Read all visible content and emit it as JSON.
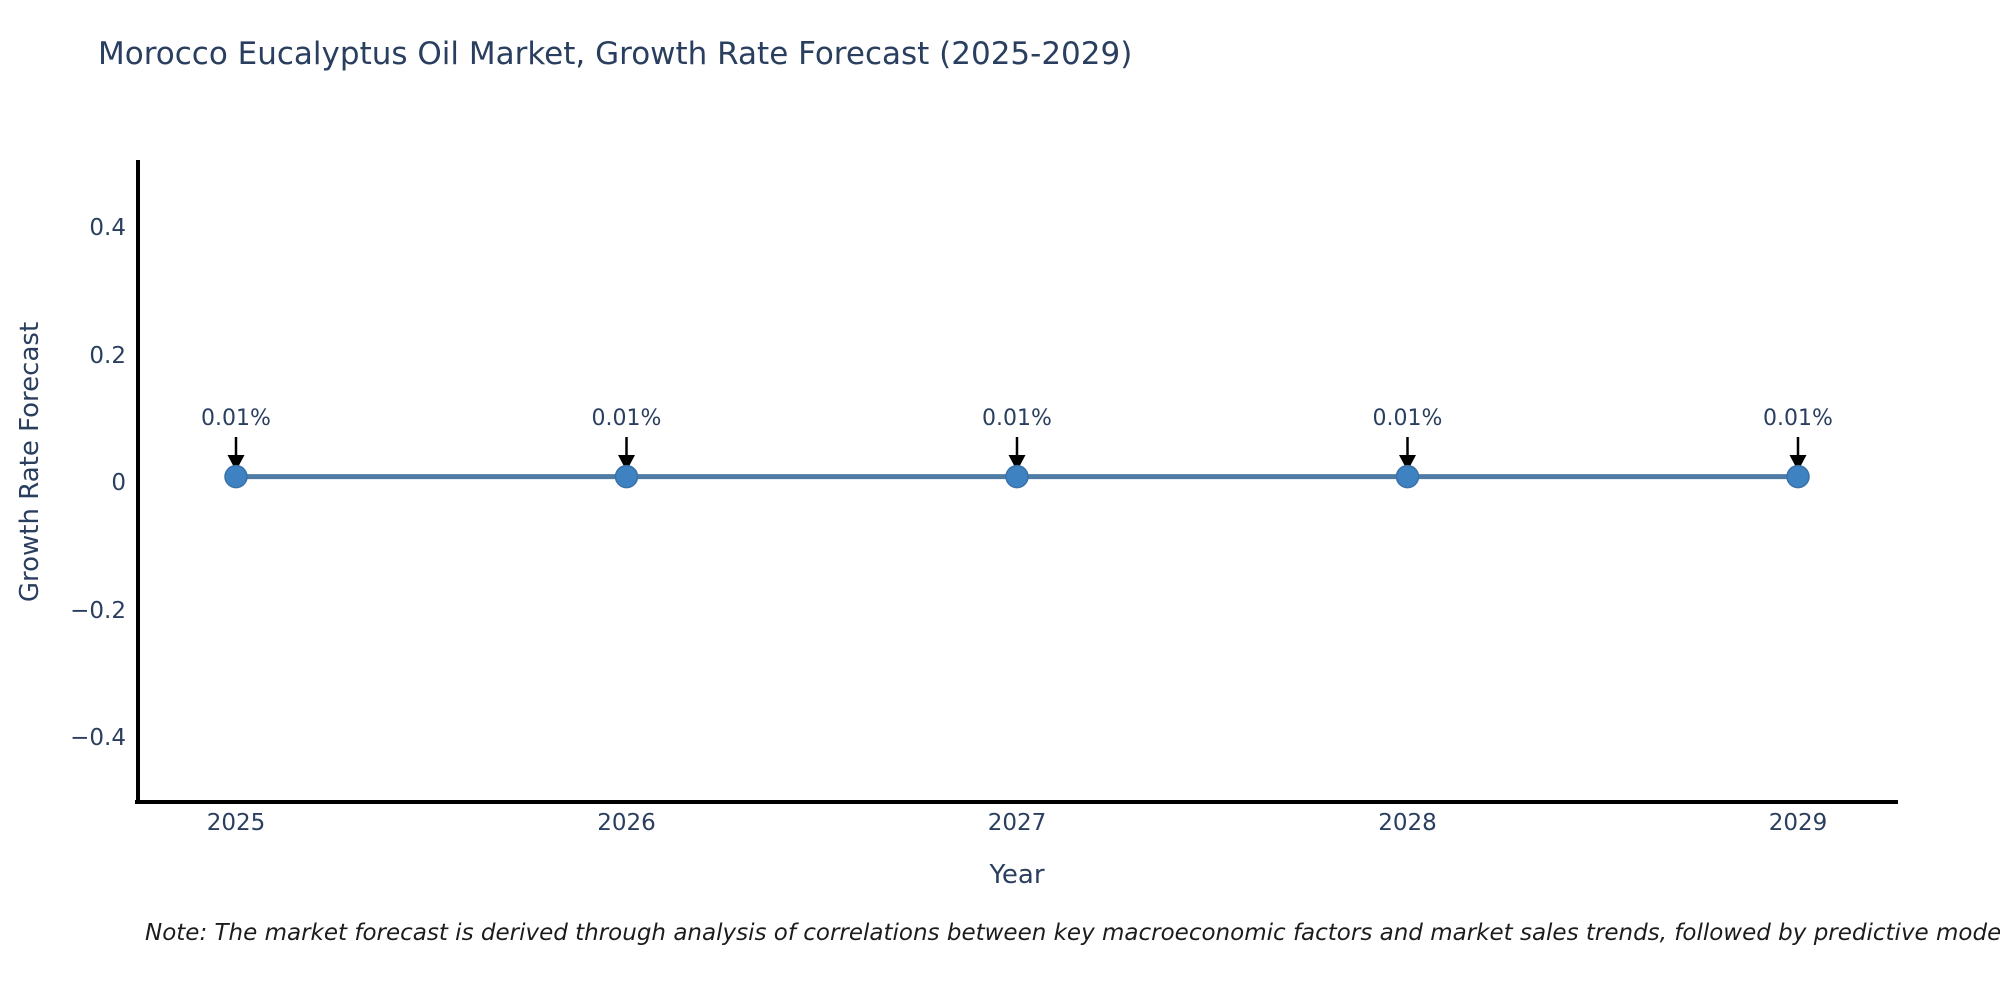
{
  "title": "Morocco Eucalyptus Oil Market, Growth Rate Forecast (2025-2029)",
  "note": "Note: The market forecast is derived through analysis of correlations between key macroeconomic factors and market sales trends, followed by predictive modeling to project future sales.",
  "chart_data": {
    "type": "line",
    "title": "Morocco Eucalyptus Oil Market, Growth Rate Forecast (2025-2029)",
    "xlabel": "Year",
    "ylabel": "Growth Rate Forecast",
    "categories": [
      "2025",
      "2026",
      "2027",
      "2028",
      "2029"
    ],
    "series": [
      {
        "name": "Growth Rate Forecast",
        "values": [
          0.01,
          0.01,
          0.01,
          0.01,
          0.01
        ],
        "point_labels": [
          "0.01%",
          "0.01%",
          "0.01%",
          "0.01%",
          "0.01%"
        ]
      }
    ],
    "ylim": [
      -0.5,
      0.51
    ],
    "ytick_values": [
      0.4,
      0.2,
      0,
      -0.2,
      -0.4
    ],
    "ytick_labels": [
      "0.4",
      "0.2",
      "0",
      "−0.2",
      "−0.4"
    ],
    "grid": false,
    "legend_position": "none",
    "annotation_style": "value label with black arrow pointing down to each marker",
    "colors": {
      "line": "#4e7ca6",
      "marker": "#3f82c1",
      "marker_edge": "#3a71a8",
      "arrow": "#000000",
      "axis": "#000000",
      "text": "#2a3f5f",
      "background": "#ffffff"
    }
  }
}
